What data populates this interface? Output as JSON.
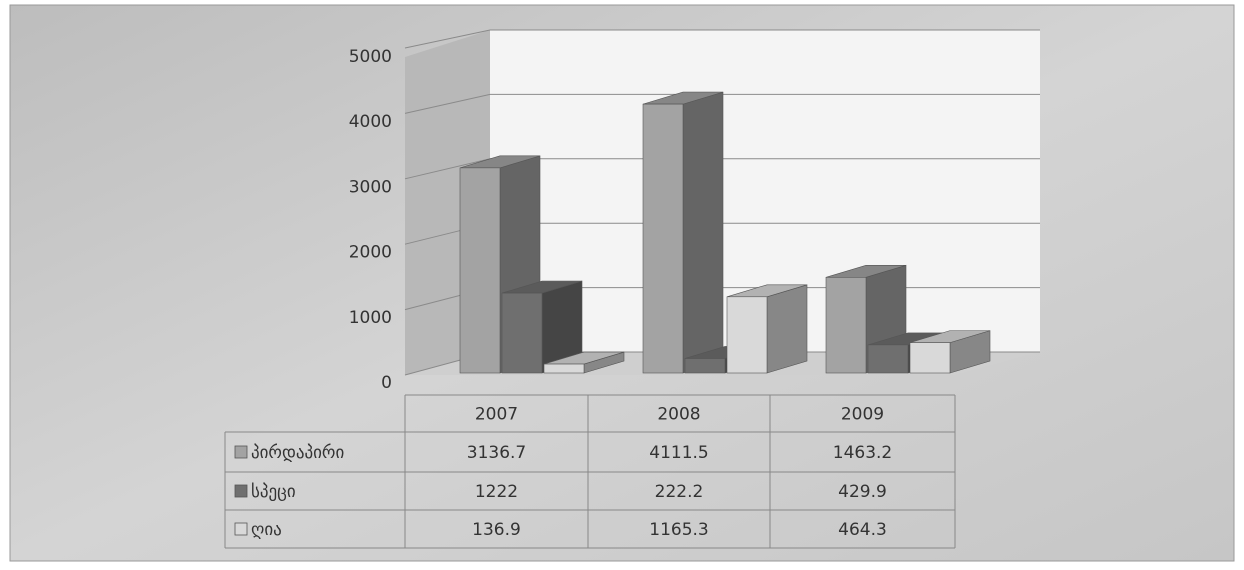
{
  "chart_data": {
    "type": "bar3d",
    "categories": [
      "2007",
      "2008",
      "2009"
    ],
    "series": [
      {
        "name": "პირდაპირი",
        "color": "#a3a3a3",
        "values": [
          3136.7,
          4111.5,
          1463.2
        ]
      },
      {
        "name": "სპეცი",
        "color": "#6f6f6f",
        "values": [
          1222,
          222.2,
          429.9
        ]
      },
      {
        "name": "ღია",
        "color": "#d9d9d9",
        "values": [
          136.9,
          1165.3,
          464.3
        ]
      }
    ],
    "ylim": [
      0,
      5000
    ],
    "yticks": [
      0,
      1000,
      2000,
      3000,
      4000,
      5000
    ],
    "grid": true,
    "data_table": true
  }
}
